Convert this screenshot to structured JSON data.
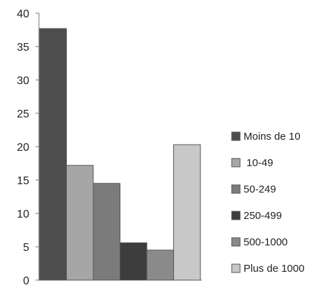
{
  "chart_data": {
    "type": "bar",
    "title": "",
    "xlabel": "",
    "ylabel": "",
    "ylim": [
      0,
      40
    ],
    "yticks": [
      0,
      5,
      10,
      15,
      20,
      25,
      30,
      35,
      40
    ],
    "grid": false,
    "legend_position": "right",
    "series": [
      {
        "name": "Moins de 10",
        "value": 37.7,
        "color": "#4d4d4d"
      },
      {
        "name": " 10-49",
        "value": 17.2,
        "color": "#a6a6a6"
      },
      {
        "name": "50-249",
        "value": 14.5,
        "color": "#7b7b7b"
      },
      {
        "name": "250-499",
        "value": 5.6,
        "color": "#3d3d3d"
      },
      {
        "name": "500-1000",
        "value": 4.5,
        "color": "#8a8a8a"
      },
      {
        "name": "Plus de 1000",
        "value": 20.3,
        "color": "#c8c8c8"
      }
    ]
  }
}
